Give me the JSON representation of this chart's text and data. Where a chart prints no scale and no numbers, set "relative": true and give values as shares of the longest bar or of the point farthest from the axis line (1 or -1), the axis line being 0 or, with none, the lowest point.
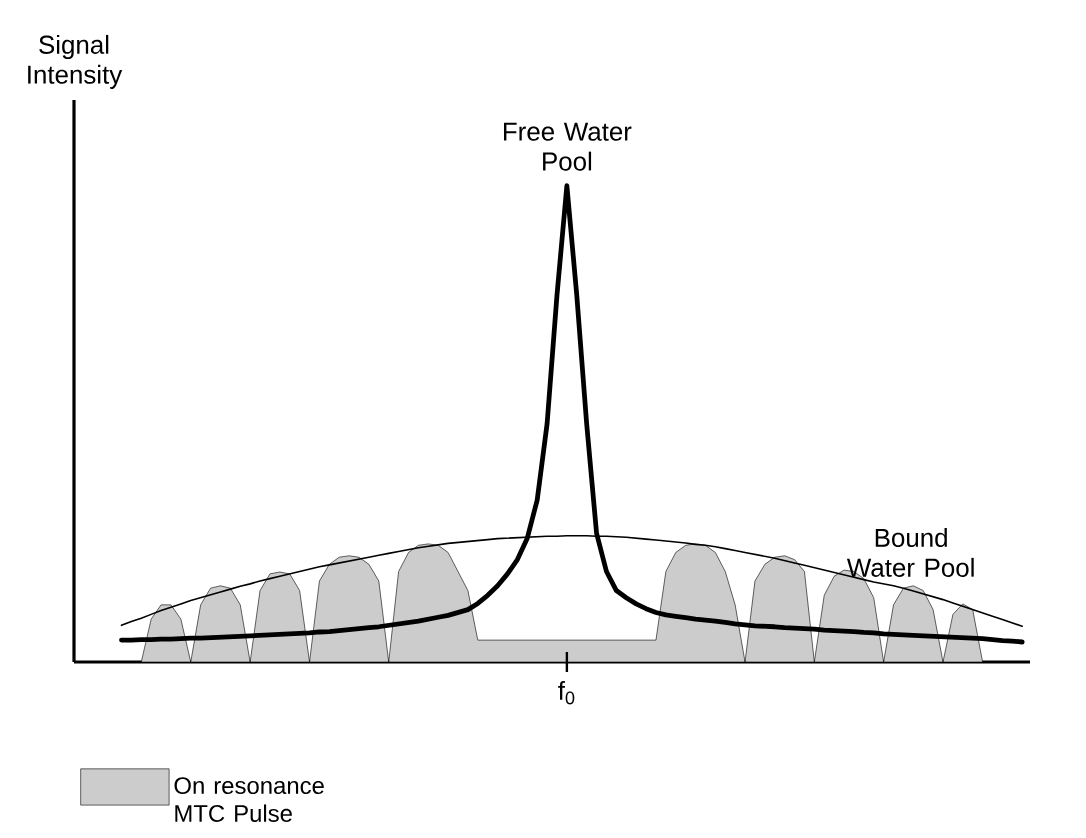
{
  "chart_data": {
    "type": "line",
    "ylabel": "Signal Intensity",
    "relative": true,
    "legend": "bottom left",
    "annotations": [
      "Free Water Pool",
      "Bound Water Pool",
      "f$_{0}$"
    ],
    "categories": [
      null,
      null,
      null,
      null,
      null,
      null,
      null,
      null,
      null,
      null,
      null,
      null,
      null,
      null,
      null,
      null,
      null,
      null,
      null,
      null,
      null,
      null,
      null,
      null,
      null,
      null,
      null,
      null,
      null,
      null,
      null,
      null,
      null,
      null,
      null,
      null,
      null,
      null,
      null,
      null,
      null,
      null,
      null,
      null,
      null,
      null,
      null,
      null,
      null,
      null,
      null,
      null,
      null,
      null,
      null,
      null,
      null,
      null,
      null,
      null,
      null,
      null,
      null,
      null,
      null,
      null,
      null,
      null,
      null,
      null,
      null,
      null,
      null,
      null,
      null,
      null,
      null,
      null,
      null,
      null,
      null,
      null,
      null,
      null,
      null,
      null,
      null,
      null,
      null,
      null,
      null,
      null
    ],
    "series": [
      {
        "name": "On resonance MTC Pulse",
        "type": "area",
        "color": "#cccccc",
        "values": [
          0,
          0,
          0,
          0.09,
          0.12,
          0.12,
          0.09,
          0,
          0.12,
          0.155,
          0.16,
          0.155,
          0.12,
          0,
          0.15,
          0.185,
          0.189,
          0.185,
          0.15,
          0,
          0.17,
          0.205,
          0.22,
          0.223,
          0.22,
          0.205,
          0.17,
          0,
          0.19,
          0.23,
          0.245,
          0.248,
          0.245,
          0.23,
          0.19,
          0.15,
          0.046,
          0.046,
          0.046,
          0.046,
          0.046,
          0.046,
          0.046,
          0.046,
          0.046,
          0.046,
          0.046,
          0.046,
          0.046,
          0.046,
          0.046,
          0.046,
          0.046,
          0.046,
          0.046,
          0.19,
          0.23,
          0.245,
          0.248,
          0.245,
          0.23,
          0.19,
          0.12,
          0,
          0.17,
          0.205,
          0.22,
          0.223,
          0.215,
          0.19,
          0,
          0.14,
          0.18,
          0.193,
          0.19,
          0.175,
          0.135,
          0,
          0.12,
          0.155,
          0.16,
          0.15,
          0.11,
          0,
          0.1,
          0.122,
          0.11,
          0,
          0,
          0,
          0,
          0
        ]
      },
      {
        "type": "line",
        "color": "#000000",
        "values": [
          0.046,
          0.046,
          0.047,
          0.047,
          0.048,
          0.048,
          0.049,
          0.05,
          0.05,
          0.051,
          0.052,
          0.053,
          0.054,
          0.055,
          0.056,
          0.057,
          0.058,
          0.059,
          0.06,
          0.061,
          0.063,
          0.064,
          0.066,
          0.068,
          0.07,
          0.072,
          0.074,
          0.077,
          0.08,
          0.083,
          0.086,
          0.09,
          0.094,
          0.098,
          0.104,
          0.11,
          0.123,
          0.14,
          0.16,
          0.185,
          0.215,
          0.26,
          0.34,
          0.5,
          0.77,
          1,
          0.77,
          0.5,
          0.27,
          0.19,
          0.15,
          0.135,
          0.122,
          0.112,
          0.104,
          0.099,
          0.096,
          0.093,
          0.09,
          0.088,
          0.086,
          0.083,
          0.08,
          0.078,
          0.076,
          0.075,
          0.074,
          0.072,
          0.071,
          0.07,
          0.069,
          0.067,
          0.066,
          0.065,
          0.064,
          0.062,
          0.061,
          0.059,
          0.058,
          0.057,
          0.056,
          0.055,
          0.054,
          0.053,
          0.052,
          0.051,
          0.05,
          0.049,
          0.047,
          0.045,
          0.044,
          0.042
        ]
      },
      {
        "type": "line",
        "color": "#000000",
        "values": [
          0.077,
          0.085,
          0.092,
          0.1,
          0.108,
          0.115,
          0.122,
          0.129,
          0.135,
          0.141,
          0.147,
          0.153,
          0.159,
          0.164,
          0.17,
          0.175,
          0.18,
          0.185,
          0.19,
          0.195,
          0.2,
          0.204,
          0.208,
          0.212,
          0.216,
          0.22,
          0.224,
          0.228,
          0.232,
          0.236,
          0.24,
          0.243,
          0.246,
          0.249,
          0.251,
          0.253,
          0.255,
          0.257,
          0.259,
          0.26,
          0.261,
          0.262,
          0.263,
          0.264,
          0.264,
          0.265,
          0.265,
          0.265,
          0.264,
          0.264,
          0.263,
          0.262,
          0.26,
          0.258,
          0.256,
          0.254,
          0.252,
          0.25,
          0.247,
          0.245,
          0.242,
          0.238,
          0.234,
          0.23,
          0.226,
          0.222,
          0.218,
          0.213,
          0.208,
          0.203,
          0.198,
          0.193,
          0.188,
          0.183,
          0.178,
          0.173,
          0.168,
          0.164,
          0.16,
          0.155,
          0.149,
          0.143,
          0.137,
          0.131,
          0.124,
          0.117,
          0.11,
          0.103,
          0.096,
          0.089,
          0.082,
          0.075
        ]
      }
    ]
  }
}
